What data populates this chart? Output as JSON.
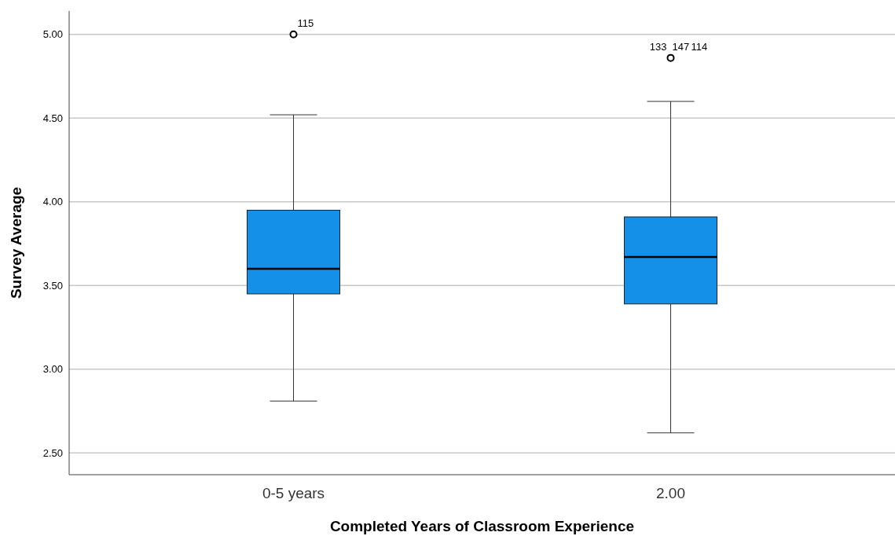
{
  "chart_data": {
    "type": "box",
    "xlabel": "Completed Years of Classroom Experience",
    "ylabel": "Survey Average",
    "categories": [
      "0-5 years",
      "2.00"
    ],
    "boxes": [
      {
        "low": 2.81,
        "q1": 3.45,
        "median": 3.6,
        "q3": 3.95,
        "high": 4.52,
        "outliers": [
          5.0
        ]
      },
      {
        "low": 2.62,
        "q1": 3.39,
        "median": 3.67,
        "q3": 3.91,
        "high": 4.6,
        "outliers": [
          4.86
        ]
      }
    ],
    "color": "#1490e8",
    "ylim": [
      2.37,
      5.14
    ],
    "yticks": [
      {
        "value": 2.5,
        "label": "2.50"
      },
      {
        "value": 3,
        "label": "3.00"
      },
      {
        "value": 3.5,
        "label": "3.50"
      },
      {
        "value": 4,
        "label": "4.00"
      },
      {
        "value": 4.5,
        "label": "4.50"
      },
      {
        "value": 5,
        "label": "5.00"
      }
    ],
    "grid": "y",
    "annotations": [
      "115",
      "133",
      "147",
      "114"
    ]
  }
}
